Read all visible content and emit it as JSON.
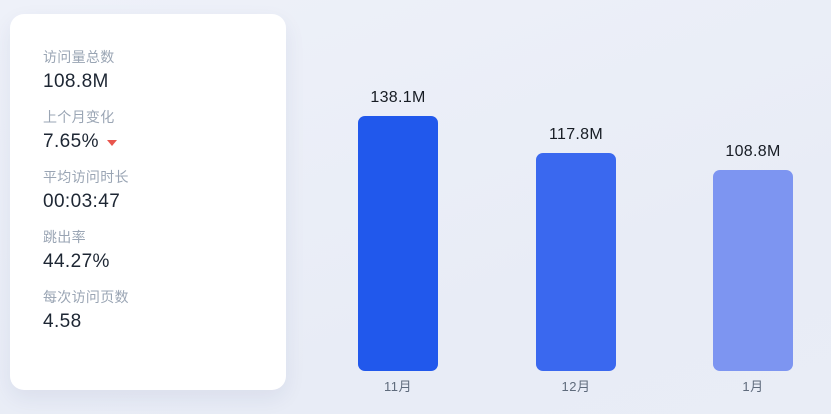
{
  "colors": {
    "background_top": "#eef1f9",
    "background_bottom": "#e8ecf6",
    "card_background": "#ffffff",
    "label_gray": "#9aa5b4",
    "value_dark": "#1d2633",
    "trend_down_red": "#e8554d",
    "month_label_gray": "#5f6b7c"
  },
  "stats_card": {
    "items": [
      {
        "label": "访问量总数",
        "value": "108.8M"
      },
      {
        "label": "上个月变化",
        "value": "7.65%",
        "trend": "down"
      },
      {
        "label": "平均访问时长",
        "value": "00:03:47"
      },
      {
        "label": "跳出率",
        "value": "44.27%"
      },
      {
        "label": "每次访问页数",
        "value": "4.58"
      }
    ]
  },
  "chart_data": {
    "type": "bar",
    "categories": [
      "11月",
      "12月",
      "1月"
    ],
    "values": [
      138.1,
      117.8,
      108.8
    ],
    "value_labels": [
      "138.1M",
      "117.8M",
      "108.8M"
    ],
    "bar_colors": [
      "#2158ec",
      "#3a68ef",
      "#7d95f1"
    ],
    "title": "",
    "xlabel": "",
    "ylabel": "",
    "ylim": [
      0,
      138.1
    ],
    "grid": false,
    "legend": false
  }
}
